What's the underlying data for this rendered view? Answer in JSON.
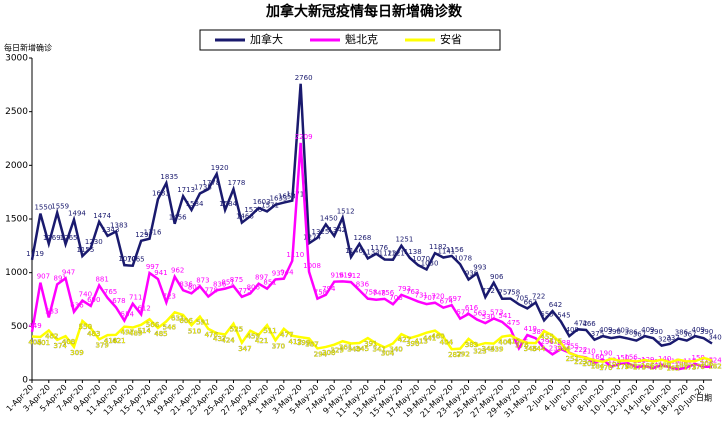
{
  "chart_data": {
    "type": "line",
    "title": "加拿大新冠疫情每日新增确诊数",
    "y_label": "每日新增确诊",
    "x_label": "日期",
    "categories": [
      "1-Apr-20",
      null,
      "3-Apr-20",
      null,
      "5-Apr-20",
      null,
      "7-Apr-20",
      null,
      "9-Apr-20",
      null,
      "11-Apr-20",
      null,
      "13-Apr-20",
      null,
      "15-Apr-20",
      null,
      "17-Apr-20",
      null,
      "19-Apr-20",
      null,
      "21-Apr-20",
      null,
      "23-Apr-20",
      null,
      "25-Apr-20",
      null,
      "27-Apr-20",
      null,
      "29-Apr-20",
      null,
      "1-May-20",
      null,
      "3-May-20",
      null,
      "5-May-20",
      null,
      "7-May-20",
      null,
      "9-May-20",
      null,
      "11-May-20",
      null,
      "13-May-20",
      null,
      "15-May-20",
      null,
      "17-May-20",
      null,
      "19-May-20",
      null,
      "21-May-20",
      null,
      "23-May-20",
      null,
      "25-May-20",
      null,
      "27-May-20",
      null,
      "29-May-20",
      null,
      "31-May-20",
      null,
      "2-Jun-20",
      null,
      "4-Jun-20",
      null,
      "6-Jun-20",
      null,
      "8-Jun-20",
      null,
      "10-Jun-20",
      null,
      "12-Jun-20",
      null,
      "14-Jun-20",
      null,
      "16-Jun-20",
      null,
      "18-Jun-20",
      null,
      "20-Jun-20",
      null
    ],
    "series": [
      {
        "name": "加拿大",
        "color": "#1a1a6e",
        "values": [
          1119,
          1550,
          1269,
          1559,
          1265,
          1494,
          1155,
          1230,
          1474,
          1343,
          1383,
          1070,
          1065,
          1297,
          1316,
          1683,
          1835,
          1456,
          1713,
          1584,
          1738,
          1778,
          1920,
          1584,
          1778,
          1466,
          1526,
          1603,
          1571,
          1633,
          1653,
          1671,
          2760,
          1274,
          1325,
          1450,
          1342,
          1512,
          1146,
          1268,
          1133,
          1176,
          1123,
          1121,
          1251,
          1138,
          1070,
          1030,
          1182,
          1141,
          1156,
          1078,
          936,
          993,
          772,
          906,
          757,
          758,
          705,
          667,
          722,
          555,
          642,
          545,
          409,
          472,
          466,
          375,
          409,
          390,
          403,
          386,
          367,
          409,
          390,
          320,
          337,
          386,
          367,
          409,
          390,
          340
        ]
      },
      {
        "name": "魁北克",
        "color": "#ff00ff",
        "values": [
          449,
          907,
          583,
          891,
          947,
          636,
          740,
          690,
          881,
          765,
          678,
          554,
          711,
          612,
          997,
          941,
          723,
          962,
          836,
          807,
          873,
          778,
          836,
          851,
          875,
          775,
          806,
          897,
          851,
          937,
          944,
          1110,
          2209,
          1008,
          758,
          794,
          916,
          919,
          912,
          836,
          758,
          748,
          756,
          706,
          793,
          763,
          731,
          707,
          720,
          674,
          697,
          572,
          616,
          563,
          530,
          573,
          541,
          475,
          295,
          419,
          389,
          296,
          239,
          288,
          255,
          222,
          210,
          160,
          190,
          124,
          150,
          156,
          120,
          129,
          111,
          140,
          118,
          100,
          117,
          150,
          124,
          124
        ]
      },
      {
        "name": "安省",
        "color": "#ffff00",
        "values": [
          405,
          401,
          462,
          374,
          408,
          309,
          550,
          483,
          379,
          418,
          421,
          497,
          489,
          514,
          566,
          485,
          546,
          631,
          606,
          510,
          591,
          476,
          437,
          424,
          525,
          347,
          459,
          421,
          511,
          370,
          477,
          412,
          399,
          387,
          294,
          308,
          329,
          361,
          340,
          345,
          391,
          341,
          304,
          340,
          427,
          390,
          413,
          441,
          460,
          404,
          287,
          292,
          383,
          323,
          344,
          339,
          404,
          415,
          376,
          346,
          344,
          455,
          415,
          344,
          251,
          223,
          205,
          184,
          170,
          197,
          179,
          182,
          173,
          186,
          173,
          189,
          165,
          189,
          173,
          176,
          206,
          182
        ]
      }
    ],
    "ylim": [
      0,
      3000
    ],
    "yticks": [
      0,
      500,
      1000,
      1500,
      2000,
      2500,
      3000
    ],
    "grid": false
  }
}
